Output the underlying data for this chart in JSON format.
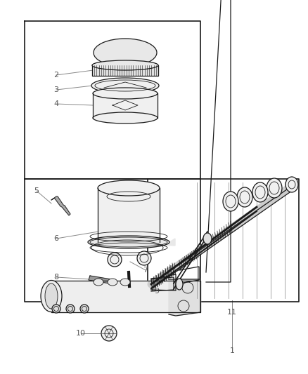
{
  "bg_color": "#ffffff",
  "lc": "#1a1a1a",
  "label_color": "#555555",
  "fig_width": 4.38,
  "fig_height": 5.33,
  "dpi": 100
}
